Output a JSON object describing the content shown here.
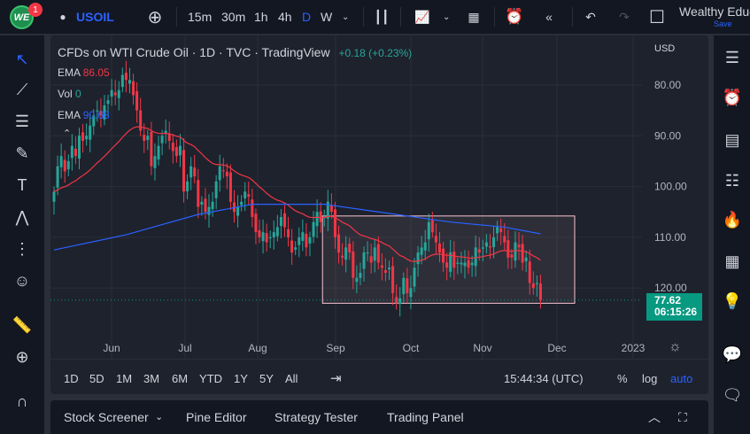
{
  "topbar": {
    "badge": "1",
    "logo": "WE",
    "symbol": "USOIL",
    "intervals": [
      "15m",
      "30m",
      "1h",
      "4h",
      "D",
      "W"
    ],
    "active_interval": "D",
    "account": "Wealthy Educ",
    "save": "Save"
  },
  "legend": {
    "title": "CFDs on WTI Crude Oil · 1D · TVC · TradingView",
    "change": "+0.18 (+0.23%)",
    "indicators": [
      {
        "name": "EMA",
        "value": "86.05",
        "color": "#f23645"
      },
      {
        "name": "Vol",
        "value": "0",
        "color": "#26a69a"
      },
      {
        "name": "EMA",
        "value": "90.68",
        "color": "#2962ff"
      }
    ]
  },
  "price_axis": {
    "currency": "USD",
    "ticks": [
      "120.00",
      "110.00",
      "100.00",
      "90.00",
      "80.00"
    ],
    "last_price": "77.62",
    "countdown": "06:15:26"
  },
  "time_axis": {
    "ticks": [
      "Jun",
      "Jul",
      "Aug",
      "Sep",
      "Oct",
      "Nov",
      "Dec",
      "2023"
    ]
  },
  "bottom_toolbar": {
    "ranges": [
      "1D",
      "5D",
      "1M",
      "3M",
      "6M",
      "YTD",
      "1Y",
      "5Y",
      "All"
    ],
    "clock": "15:44:34 (UTC)",
    "percent": "%",
    "log": "log",
    "auto": "auto"
  },
  "bottom_panel": {
    "tabs": [
      "Stock Screener",
      "Pine Editor",
      "Strategy Tester",
      "Trading Panel"
    ]
  },
  "colors": {
    "up": "#26a69a",
    "down": "#f23645",
    "ema_fast": "#f23645",
    "ema_slow": "#2962ff",
    "rectangle": "#f7c5d0",
    "accent": "#2962ff"
  },
  "chart_data": {
    "type": "candlestick",
    "ylim": [
      74,
      126
    ],
    "y_ticks": [
      80,
      90,
      100,
      110,
      120
    ],
    "x_ticks": [
      "Jun",
      "Jul",
      "Aug",
      "Sep",
      "Oct",
      "Nov",
      "Dec",
      "2023"
    ],
    "closes": [
      99,
      104,
      106,
      103,
      105,
      108,
      106,
      110,
      109,
      110,
      112,
      114,
      115,
      114,
      116,
      117,
      119,
      118,
      119,
      122,
      121,
      121,
      118,
      115,
      111,
      109,
      110,
      104,
      106,
      108,
      110,
      111,
      109,
      107,
      106,
      108,
      99,
      101,
      104,
      102,
      96,
      97,
      95,
      96,
      97,
      101,
      104,
      103,
      102,
      97,
      95,
      96,
      97,
      99,
      98,
      94,
      91,
      90,
      91,
      89,
      90,
      91,
      92,
      94,
      92,
      90,
      87,
      88,
      90,
      91,
      88,
      90,
      93,
      95,
      93,
      94,
      97,
      95,
      90,
      87,
      86,
      88,
      87,
      82,
      82,
      83,
      87,
      87,
      85,
      88,
      85,
      84,
      83,
      84,
      79,
      77,
      78,
      82,
      79,
      80,
      84,
      87,
      88,
      89,
      93,
      91,
      89,
      87,
      85,
      84,
      87,
      84,
      85,
      85,
      85,
      84,
      85,
      88,
      87,
      88,
      89,
      88,
      90,
      92,
      91,
      89,
      86,
      86,
      89,
      88,
      85,
      86,
      81,
      80,
      81,
      77.62
    ],
    "ema_slow_points": [
      [
        0,
        87.5
      ],
      [
        20,
        90.5
      ],
      [
        40,
        94.5
      ],
      [
        55,
        96.5
      ],
      [
        75,
        96.5
      ],
      [
        90,
        95
      ],
      [
        110,
        93
      ],
      [
        125,
        92
      ],
      [
        135,
        90.68
      ]
    ],
    "rectangle": {
      "top": 94.2,
      "bottom": 77.0
    },
    "last_price": 77.62
  }
}
